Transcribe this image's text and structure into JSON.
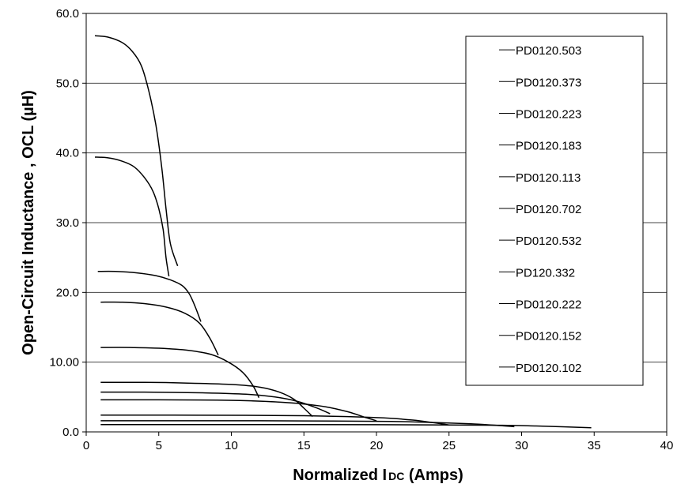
{
  "chart_data": {
    "type": "line",
    "title": "",
    "xlabel_main": "Normalized I",
    "xlabel_sub": "DC",
    "xlabel_tail": " (Amps)",
    "ylabel": "Open-Circuit Inductance , OCL (µH)",
    "xlim": [
      0,
      40
    ],
    "ylim": [
      0,
      60
    ],
    "grid": "horizontal",
    "legend_position": "right",
    "x_ticks": [
      "0",
      "5",
      "10",
      "15",
      "20",
      "25",
      "30",
      "35",
      "40"
    ],
    "x_tick_values": [
      0,
      5,
      10,
      15,
      20,
      25,
      30,
      35,
      40
    ],
    "y_ticks": [
      "0.0",
      "10.00",
      "20.0",
      "30.0",
      "40.0",
      "50.0",
      "60.0"
    ],
    "y_tick_values": [
      0,
      10,
      20,
      30,
      40,
      50,
      60
    ],
    "line_color": "#000000",
    "series": [
      {
        "name": "PD0120.503",
        "x": [
          0.6,
          1.5,
          2.5,
          3.2,
          3.8,
          4.3,
          4.8,
          5.2,
          5.5,
          5.8,
          6.3
        ],
        "y": [
          56.8,
          56.6,
          55.8,
          54.5,
          52.5,
          49.0,
          44.0,
          38.0,
          32.0,
          27.0,
          23.8
        ]
      },
      {
        "name": "PD0120.373",
        "x": [
          0.6,
          1.5,
          2.5,
          3.3,
          4.0,
          4.6,
          5.0,
          5.3,
          5.5,
          5.7
        ],
        "y": [
          39.4,
          39.3,
          38.8,
          38.0,
          36.5,
          34.5,
          32.0,
          29.0,
          25.0,
          22.3
        ]
      },
      {
        "name": "PD0120.223",
        "x": [
          0.8,
          2.0,
          3.5,
          4.8,
          5.8,
          6.6,
          7.1,
          7.5,
          7.9
        ],
        "y": [
          23.0,
          23.0,
          22.8,
          22.4,
          21.8,
          21.0,
          19.8,
          18.0,
          15.8
        ]
      },
      {
        "name": "PD0120.183",
        "x": [
          1.0,
          2.5,
          4.0,
          5.5,
          6.8,
          7.8,
          8.5,
          9.1
        ],
        "y": [
          18.6,
          18.6,
          18.4,
          17.9,
          17.0,
          15.6,
          13.5,
          11.0
        ]
      },
      {
        "name": "PD0120.113",
        "x": [
          1.0,
          3.0,
          5.0,
          7.0,
          8.6,
          9.8,
          10.8,
          11.5,
          11.9
        ],
        "y": [
          12.1,
          12.1,
          12.0,
          11.7,
          11.1,
          10.0,
          8.5,
          6.6,
          4.9
        ]
      },
      {
        "name": "PD0120.702",
        "x": [
          1.0,
          4.0,
          7.0,
          10.0,
          12.0,
          13.3,
          14.3,
          15.0,
          15.6
        ],
        "y": [
          7.1,
          7.1,
          7.0,
          6.8,
          6.4,
          5.7,
          4.7,
          3.4,
          2.2
        ]
      },
      {
        "name": "PD0120.532",
        "x": [
          1.0,
          4.0,
          8.0,
          11.0,
          13.0,
          14.5,
          15.8,
          16.8
        ],
        "y": [
          5.7,
          5.7,
          5.6,
          5.4,
          5.0,
          4.4,
          3.5,
          2.6
        ]
      },
      {
        "name": "PD120.332",
        "x": [
          1.0,
          5.0,
          9.0,
          12.0,
          14.5,
          16.5,
          18.0,
          19.2,
          20.0
        ],
        "y": [
          4.6,
          4.6,
          4.55,
          4.4,
          4.1,
          3.6,
          2.9,
          2.1,
          1.6
        ]
      },
      {
        "name": "PD0120.222",
        "x": [
          1.0,
          6.0,
          11.0,
          15.0,
          18.0,
          20.5,
          22.5,
          24.0,
          25.0
        ],
        "y": [
          2.4,
          2.4,
          2.38,
          2.32,
          2.2,
          2.0,
          1.7,
          1.3,
          1.0
        ]
      },
      {
        "name": "PD0120.152",
        "x": [
          1.0,
          6.0,
          12.0,
          17.0,
          21.0,
          24.0,
          26.5,
          28.5,
          29.5
        ],
        "y": [
          1.6,
          1.6,
          1.6,
          1.55,
          1.5,
          1.35,
          1.15,
          0.9,
          0.75
        ]
      },
      {
        "name": "PD0120.102",
        "x": [
          1.0,
          7.0,
          14.0,
          20.0,
          25.0,
          28.5,
          31.0,
          33.0,
          34.8
        ],
        "y": [
          1.05,
          1.05,
          1.05,
          1.03,
          1.0,
          0.95,
          0.85,
          0.72,
          0.6
        ]
      }
    ]
  }
}
